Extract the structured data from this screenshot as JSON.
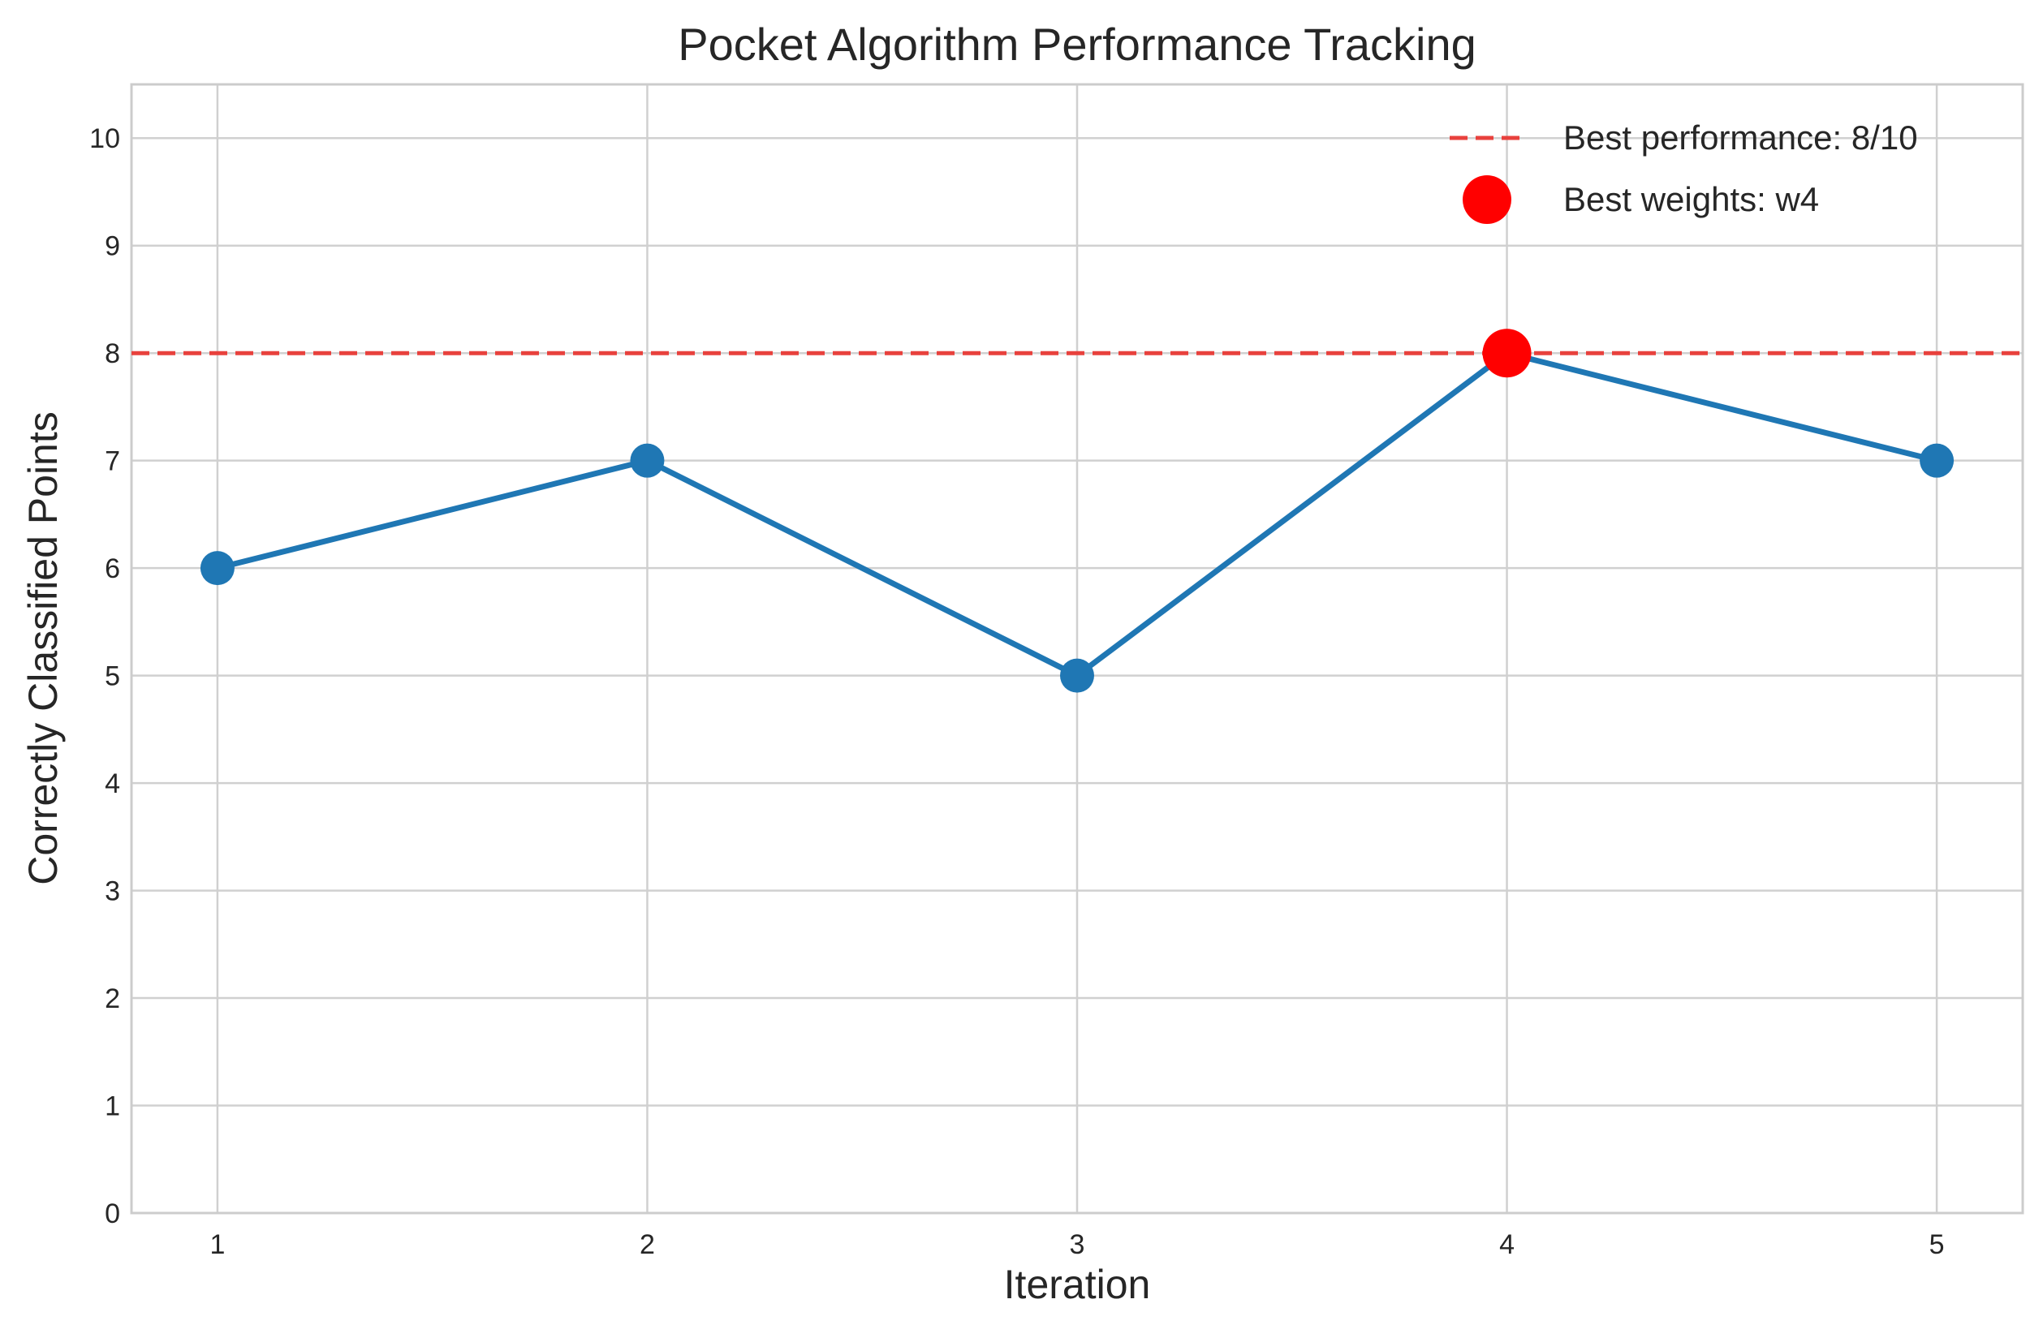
{
  "chart_data": {
    "type": "line",
    "title": "Pocket Algorithm Performance Tracking",
    "xlabel": "Iteration",
    "ylabel": "Correctly Classified Points",
    "x": [
      1,
      2,
      3,
      4,
      5
    ],
    "xticks": [
      "1",
      "2",
      "3",
      "4",
      "5"
    ],
    "xlim": [
      0.8,
      5.2
    ],
    "ylim": [
      0,
      10.5
    ],
    "yticks": [
      "0",
      "1",
      "2",
      "3",
      "4",
      "5",
      "6",
      "7",
      "8",
      "9",
      "10"
    ],
    "grid": true,
    "legend_position": "top-right",
    "series": [
      {
        "values": [
          6,
          7,
          5,
          8,
          7
        ],
        "color": "#1f77b4",
        "marker": "circle"
      }
    ],
    "reference_line": {
      "y": 8,
      "label": "Best performance: 8/10",
      "color": "#e8413d",
      "style": "dashed"
    },
    "highlight_point": {
      "x": 4,
      "y": 8,
      "label": "Best weights: w4",
      "color": "#ff0000"
    },
    "colors": {
      "grid": "#d0d0d0",
      "axes_border": "#cccccc",
      "text": "#262626"
    }
  }
}
